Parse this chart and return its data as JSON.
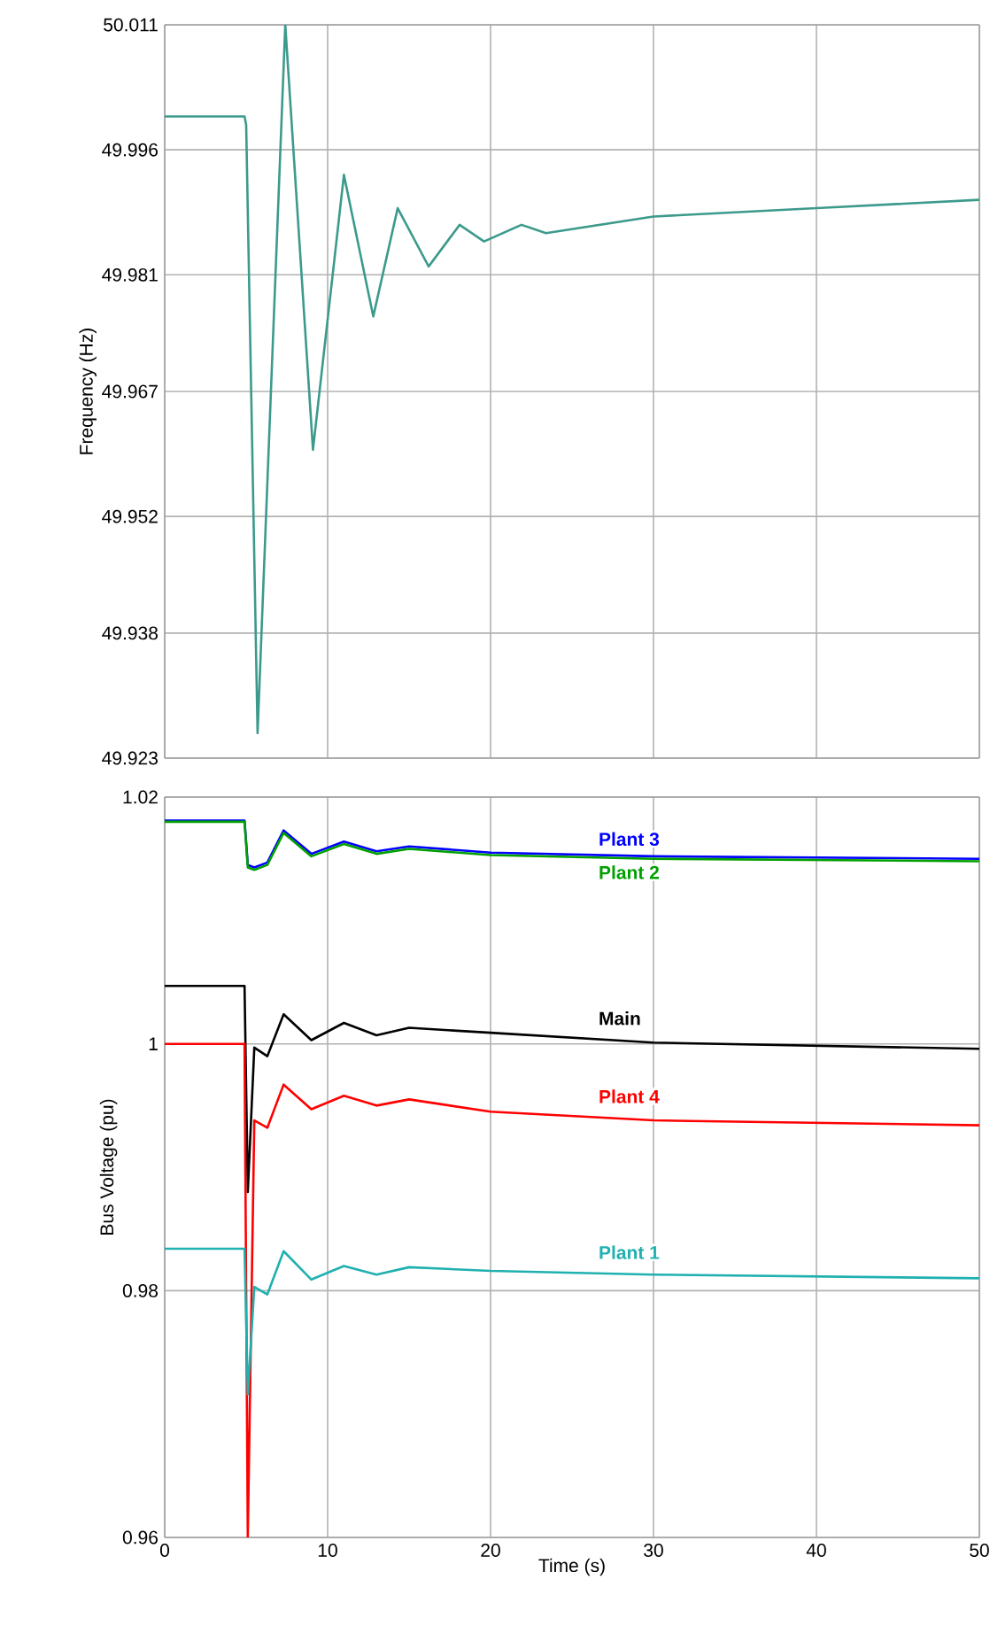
{
  "chart_data": [
    {
      "type": "line",
      "ylabel": "Frequency (Hz)",
      "xlim": [
        0,
        50
      ],
      "xticks": [
        0,
        10,
        20,
        30,
        40,
        50
      ],
      "ylim": [
        49.923,
        50.011
      ],
      "yticks": [
        49.923,
        49.938,
        49.952,
        49.967,
        49.981,
        49.996,
        50.011
      ],
      "grid": true,
      "tick_labels": "y",
      "series": [
        {
          "color": "#3c9a8c",
          "x": [
            0,
            4.9,
            5.0,
            5.7,
            7.4,
            9.1,
            11,
            12.8,
            14.3,
            16.2,
            18.1,
            19.6,
            21.9,
            23.4,
            30,
            40,
            50
          ],
          "values": [
            50.0,
            50.0,
            49.999,
            49.926,
            50.011,
            49.96,
            49.993,
            49.976,
            49.989,
            49.982,
            49.987,
            49.985,
            49.987,
            49.986,
            49.988,
            49.989,
            49.99
          ]
        }
      ]
    },
    {
      "type": "line",
      "xlabel": "Time (s)",
      "ylabel": "Bus Voltage (pu)",
      "xlim": [
        0,
        50
      ],
      "xticks": [
        0,
        10,
        20,
        30,
        40,
        50
      ],
      "ylim": [
        0.96,
        1.02
      ],
      "yticks": [
        0.96,
        0.98,
        1,
        1.02
      ],
      "grid": true,
      "series": [
        {
          "name": "Plant 3",
          "color": "#0000ff",
          "x": [
            0,
            4.9,
            5.1,
            5.5,
            6.3,
            7.3,
            9,
            11,
            13,
            15,
            20,
            30,
            50
          ],
          "values": [
            1.0181,
            1.0181,
            1.0145,
            1.0143,
            1.0147,
            1.0173,
            1.0154,
            1.0164,
            1.0156,
            1.016,
            1.0155,
            1.0152,
            1.015
          ]
        },
        {
          "name": "Plant 2",
          "color": "#00a000",
          "x": [
            0,
            4.9,
            5.1,
            5.5,
            6.3,
            7.3,
            9,
            11,
            13,
            15,
            20,
            30,
            50
          ],
          "values": [
            1.018,
            1.018,
            1.0143,
            1.0141,
            1.0145,
            1.0171,
            1.0152,
            1.0162,
            1.0154,
            1.0158,
            1.0153,
            1.015,
            1.0148
          ]
        },
        {
          "name": "Main",
          "color": "#000000",
          "x": [
            0,
            4.9,
            5.1,
            5.5,
            6.3,
            7.3,
            9,
            11,
            13,
            15,
            20,
            30,
            50
          ],
          "values": [
            1.0047,
            1.0047,
            0.988,
            0.9997,
            0.999,
            1.0024,
            1.0003,
            1.0017,
            1.0007,
            1.0013,
            1.0009,
            1.0001,
            0.9996
          ]
        },
        {
          "name": "Plant 4",
          "color": "#ff0000",
          "x": [
            0,
            4.9,
            5.1,
            5.5,
            6.3,
            7.3,
            9,
            11,
            13,
            15,
            20,
            30,
            50
          ],
          "values": [
            1.0,
            1.0,
            0.96,
            0.9938,
            0.9932,
            0.9967,
            0.9947,
            0.9958,
            0.995,
            0.9955,
            0.9945,
            0.9938,
            0.9934
          ]
        },
        {
          "name": "Plant 1",
          "color": "#20b0b0",
          "x": [
            0,
            4.9,
            5.1,
            5.5,
            6.3,
            7.3,
            9,
            11,
            13,
            15,
            20,
            30,
            50
          ],
          "values": [
            0.9834,
            0.9834,
            0.9716,
            0.9803,
            0.9797,
            0.9832,
            0.9809,
            0.982,
            0.9813,
            0.9819,
            0.9816,
            0.9813,
            0.981
          ]
        }
      ]
    }
  ]
}
